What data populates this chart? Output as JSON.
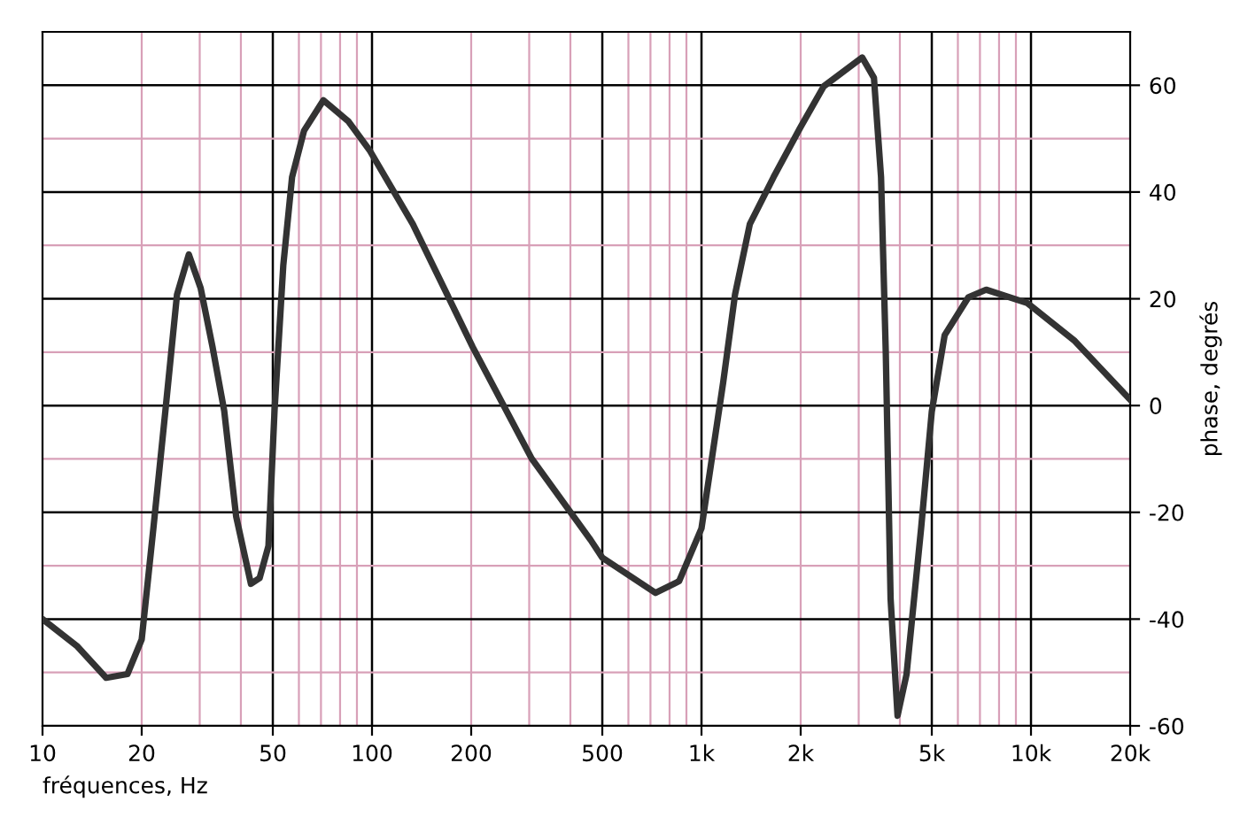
{
  "chart_data": {
    "type": "line",
    "xlabel": "fréquences, Hz",
    "ylabel": "phase, degrés",
    "log": "x",
    "grid": true,
    "marker": "none",
    "line_style": "solid",
    "xlim": [
      10,
      20000
    ],
    "ylim": [
      -60,
      70
    ],
    "xticks": [
      10,
      20,
      50,
      100,
      200,
      500,
      {
        "value": 1000,
        "label": "1k"
      },
      {
        "value": 2000,
        "label": "2k"
      },
      {
        "value": 5000,
        "label": "5k"
      },
      {
        "value": 10000,
        "label": "10k"
      },
      {
        "value": 20000,
        "label": "20k"
      }
    ],
    "yticks": [
      -60,
      -40,
      -20,
      0,
      20,
      40,
      60
    ],
    "series": [
      {
        "color": "#333333",
        "x": [
          10,
          12.7,
          15.6,
          18.1,
          20,
          21.7,
          23.6,
          25.6,
          27.8,
          30.2,
          32.8,
          35.6,
          38.7,
          42.9,
          45.6,
          48.5,
          50.6,
          53.8,
          57.2,
          62.2,
          71.2,
          84.9,
          98.6,
          133,
          202,
          305,
          461,
          500,
          725,
          855,
          1000,
          1164,
          1264,
          1402,
          1655,
          1992,
          2350,
          3075,
          3337,
          3507,
          3625,
          3749,
          3936,
          4190,
          4640,
          5000,
          5470,
          6460,
          7310,
          9750,
          13580,
          20000
        ],
        "values": [
          -40,
          -45,
          -51,
          -50.3,
          -43.8,
          -23,
          -1,
          20.8,
          28.3,
          22,
          11,
          -1,
          -20.8,
          -33.4,
          -32.3,
          -26.3,
          -1,
          26.3,
          42.8,
          51.5,
          57.2,
          53.2,
          47.7,
          34,
          11,
          -9.9,
          -25.2,
          -28.5,
          -35.1,
          -32.9,
          -23,
          4.4,
          20.8,
          34,
          42.8,
          52,
          59.8,
          65.2,
          61.4,
          42.8,
          9.9,
          -36.2,
          -58.1,
          -50.4,
          -23,
          -1.1,
          13.2,
          20.3,
          21.7,
          19.2,
          12.1,
          1.1
        ]
      }
    ]
  }
}
